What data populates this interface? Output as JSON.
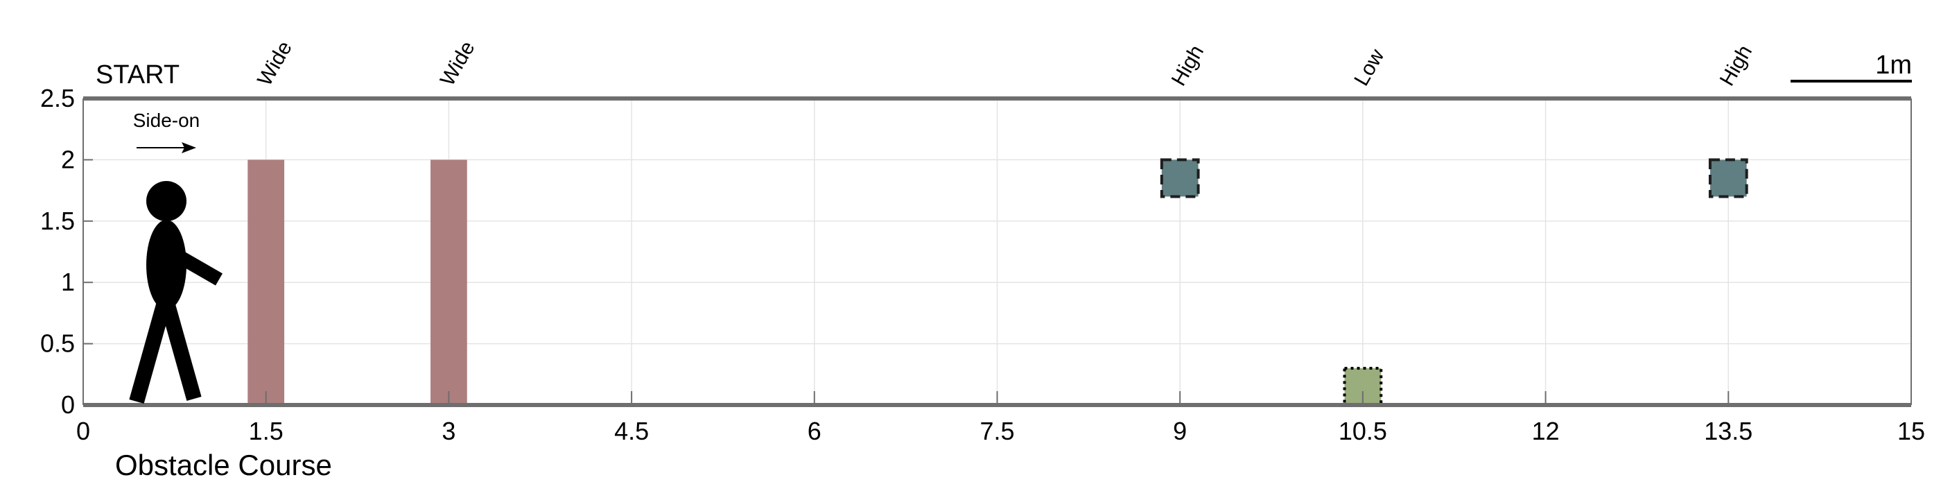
{
  "figure": {
    "start_label": "START",
    "direction_label": "Side-on",
    "scale_label": "1m",
    "scale_length_m": 1,
    "caption": "Obstacle Course"
  },
  "chart_data": {
    "type": "scatter",
    "xlim": [
      0,
      15
    ],
    "ylim": [
      0,
      2.5
    ],
    "x_ticks": [
      "0",
      "1.5",
      "3",
      "4.5",
      "6",
      "7.5",
      "9",
      "10.5",
      "12",
      "13.5",
      "15"
    ],
    "y_ticks": [
      "0",
      "0.5",
      "1",
      "1.5",
      "2",
      "2.5"
    ],
    "grid": true,
    "obstacles": [
      {
        "label": "Wide",
        "kind": "bar",
        "x": 1.5,
        "y_bottom": 0,
        "y_top": 2,
        "width": 0.3,
        "color": "#ad7e7e",
        "border": "none"
      },
      {
        "label": "Wide",
        "kind": "bar",
        "x": 3.0,
        "y_bottom": 0,
        "y_top": 2,
        "width": 0.3,
        "color": "#ad7e7e",
        "border": "none"
      },
      {
        "label": "High",
        "kind": "box",
        "x": 9.0,
        "y_bottom": 1.7,
        "y_top": 2.0,
        "width": 0.3,
        "color": "#5f7f82",
        "border": "dashed"
      },
      {
        "label": "Low",
        "kind": "box",
        "x": 10.5,
        "y_bottom": 0,
        "y_top": 0.3,
        "width": 0.3,
        "color": "#9aad7c",
        "border": "dotted"
      },
      {
        "label": "High",
        "kind": "box",
        "x": 13.5,
        "y_bottom": 1.7,
        "y_top": 2.0,
        "width": 0.3,
        "color": "#5f7f82",
        "border": "dashed"
      }
    ]
  },
  "colors": {
    "axis": "#6e6e6e",
    "grid": "#e4e4e4",
    "walker": "#000000"
  }
}
